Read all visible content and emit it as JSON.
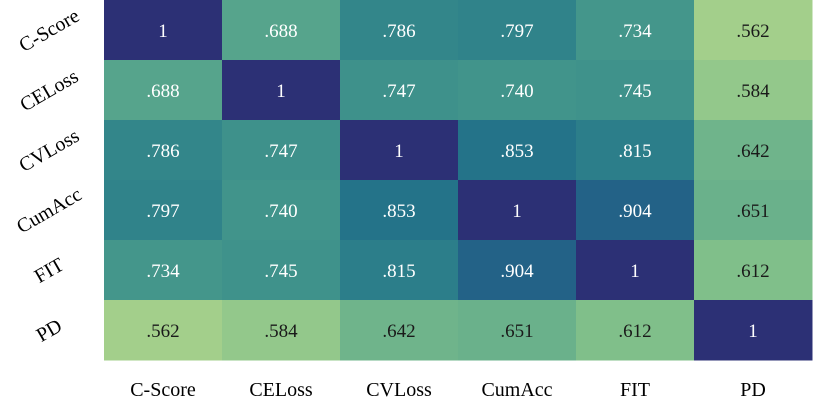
{
  "chart_data": {
    "type": "heatmap",
    "title": "",
    "xlabel": "",
    "ylabel": "",
    "x_categories": [
      "C-Score",
      "CELoss",
      "CVLoss",
      "CumAcc",
      "FIT",
      "PD"
    ],
    "y_categories": [
      "C-Score",
      "CELoss",
      "CVLoss",
      "CumAcc",
      "FIT",
      "PD"
    ],
    "values": [
      [
        1,
        0.688,
        0.786,
        0.797,
        0.734,
        0.562
      ],
      [
        0.688,
        1,
        0.747,
        0.74,
        0.745,
        0.584
      ],
      [
        0.786,
        0.747,
        1,
        0.853,
        0.815,
        0.642
      ],
      [
        0.797,
        0.74,
        0.853,
        1,
        0.904,
        0.651
      ],
      [
        0.734,
        0.745,
        0.815,
        0.904,
        1,
        0.612
      ],
      [
        0.562,
        0.584,
        0.642,
        0.651,
        0.612,
        1
      ]
    ],
    "labels": [
      [
        "1",
        ".688",
        ".786",
        ".797",
        ".734",
        ".562"
      ],
      [
        ".688",
        "1",
        ".747",
        ".740",
        ".745",
        ".584"
      ],
      [
        ".786",
        ".747",
        "1",
        ".853",
        ".815",
        ".642"
      ],
      [
        ".797",
        ".740",
        ".853",
        "1",
        ".904",
        ".651"
      ],
      [
        ".734",
        ".745",
        ".815",
        ".904",
        "1",
        ".612"
      ],
      [
        ".562",
        ".584",
        ".642",
        ".651",
        ".612",
        "1"
      ]
    ],
    "colormap": "crest",
    "value_range": [
      0.56,
      1.0
    ],
    "colorbar": false,
    "grid": false
  }
}
